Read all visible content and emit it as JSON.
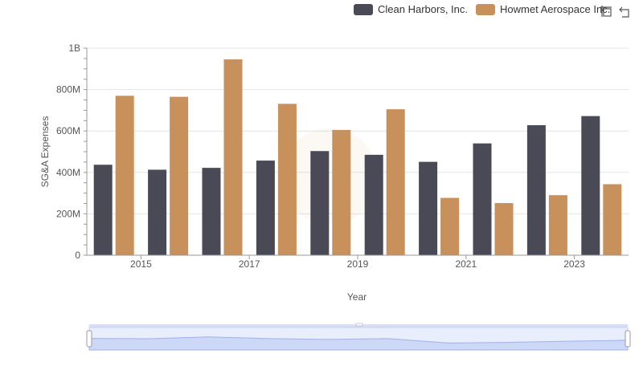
{
  "chart_data": {
    "type": "bar",
    "ylabel": "SG&A Expenses",
    "xlabel": "Year",
    "ylim": [
      0,
      1000000000
    ],
    "yticks": [
      {
        "value": 0,
        "label": "0"
      },
      {
        "value": 200000000,
        "label": "200M"
      },
      {
        "value": 400000000,
        "label": "400M"
      },
      {
        "value": 600000000,
        "label": "600M"
      },
      {
        "value": 800000000,
        "label": "800M"
      },
      {
        "value": 1000000000,
        "label": "1B"
      }
    ],
    "categories": [
      "2014",
      "2015",
      "2016",
      "2017",
      "2018",
      "2019",
      "2020",
      "2021",
      "2022",
      "2023"
    ],
    "xtick_labels": [
      "2015",
      "2017",
      "2019",
      "2021",
      "2023"
    ],
    "series": [
      {
        "name": "Clean Harbors, Inc.",
        "color": "#4a4a56",
        "values": [
          437000000,
          413000000,
          422000000,
          457000000,
          503000000,
          485000000,
          451000000,
          540000000,
          628000000,
          672000000
        ]
      },
      {
        "name": "Howmet Aerospace Inc.",
        "color": "#c8915c",
        "values": [
          770000000,
          765000000,
          946000000,
          731000000,
          605000000,
          705000000,
          277000000,
          252000000,
          290000000,
          343000000
        ]
      }
    ],
    "legend": "top-right",
    "grid": true,
    "slider": {
      "range": [
        0,
        1
      ]
    }
  },
  "icons": {
    "zoom": "zoom-select-icon",
    "reset": "zoom-reset-icon"
  }
}
